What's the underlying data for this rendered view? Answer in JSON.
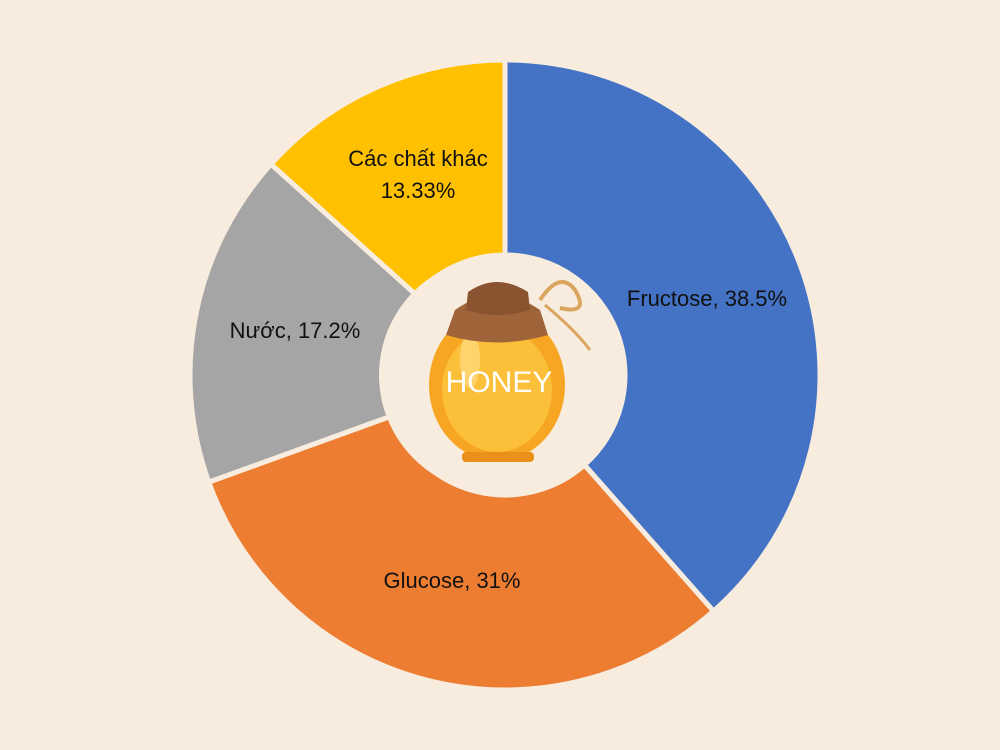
{
  "chart_data": {
    "type": "donut",
    "values": [
      38.5,
      31,
      17.2,
      13.33
    ],
    "value_labels": [
      [
        "Fructose, 38.5%"
      ],
      [
        "Glucose, 31%"
      ],
      [
        "Nước, 17.2%"
      ],
      [
        "Các chất khác",
        "13.33%"
      ]
    ],
    "colors": [
      "#4472c4",
      "#ed7d31",
      "#a5a5a5",
      "#ffc000"
    ],
    "center_label": "HONEY"
  }
}
